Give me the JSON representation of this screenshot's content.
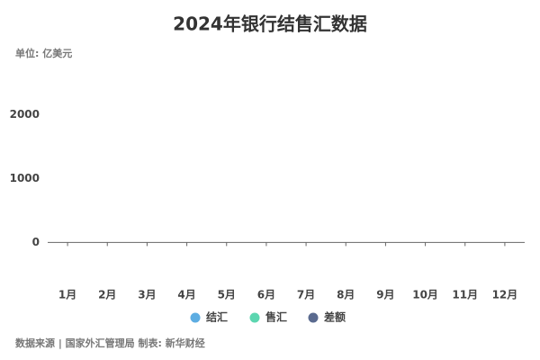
{
  "chart_data": {
    "type": "bar",
    "title": "2024年银行结售汇数据",
    "subtitle": "单位: 亿美元",
    "source": "数据来源 | 国家外汇管理局 制表: 新华财经",
    "categories": [
      "1月",
      "2月",
      "3月",
      "4月",
      "5月",
      "6月",
      "7月",
      "8月",
      "9月",
      "10月",
      "11月",
      "12月"
    ],
    "series": [
      {
        "name": "结汇",
        "color": "#5dade2",
        "values": [
          null,
          null,
          null,
          null,
          null,
          null,
          null,
          null,
          null,
          null,
          null,
          null
        ]
      },
      {
        "name": "售汇",
        "color": "#5cd6b0",
        "values": [
          null,
          null,
          null,
          null,
          null,
          null,
          null,
          null,
          null,
          null,
          null,
          null
        ]
      },
      {
        "name": "差额",
        "color": "#5a6a8f",
        "values": [
          null,
          null,
          null,
          null,
          null,
          null,
          null,
          null,
          null,
          null,
          null,
          null
        ]
      }
    ],
    "ylim": [
      -600,
      2500
    ],
    "yticks": [
      0,
      1000,
      2000
    ],
    "grid": false
  }
}
